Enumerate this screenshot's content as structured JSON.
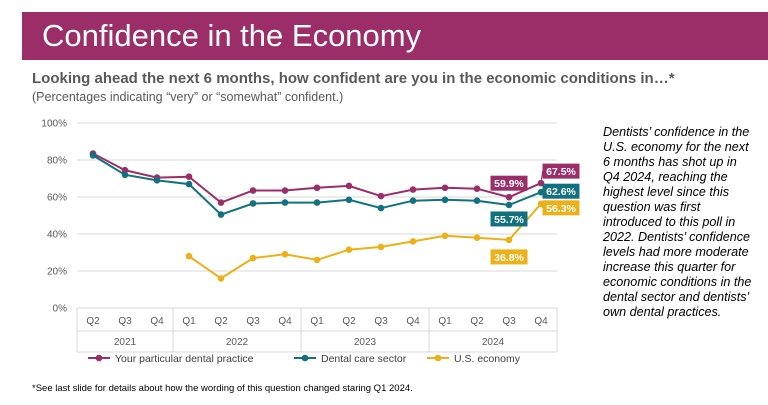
{
  "header": {
    "title": "Confidence in the Economy"
  },
  "question": "Looking ahead the next 6 months, how confident are you in the economic conditions in…*",
  "subtitle": "(Percentages indicating “very” or “somewhat” confident.)",
  "side_note": "Dentists’ confidence in the U.S. economy for the next 6 months has shot up in Q4 2024, reaching the highest level since this question was first introduced to this poll in 2022. Dentists’ confidence levels had more moderate increase this quarter for economic conditions in the dental sector and dentists’ own dental practices.",
  "footnote": "*See last slide for details about how the wording of this question changed staring Q1 2024.",
  "chart_data": {
    "type": "line",
    "title": "",
    "ylim": [
      0,
      100
    ],
    "y_ticks": [
      "0%",
      "20%",
      "40%",
      "60%",
      "80%",
      "100%"
    ],
    "categories": [
      "Q2",
      "Q3",
      "Q4",
      "Q1",
      "Q2",
      "Q3",
      "Q4",
      "Q1",
      "Q2",
      "Q3",
      "Q4",
      "Q1",
      "Q2",
      "Q3",
      "Q4"
    ],
    "years": [
      {
        "label": "2021",
        "start": 0,
        "end": 2
      },
      {
        "label": "2022",
        "start": 3,
        "end": 6
      },
      {
        "label": "2023",
        "start": 7,
        "end": 10
      },
      {
        "label": "2024",
        "start": 11,
        "end": 14
      }
    ],
    "series": [
      {
        "name": "Your particular dental practice",
        "color": "#9b2e68",
        "values": [
          83.5,
          74.5,
          70.5,
          71,
          57,
          63.5,
          63.5,
          65,
          66,
          60.5,
          64,
          65,
          64.5,
          59.9,
          67.5
        ],
        "labels": [
          {
            "index": 13,
            "text": "59.9%"
          },
          {
            "index": 14,
            "text": "67.5%"
          }
        ]
      },
      {
        "name": "Dental care sector",
        "color": "#117180",
        "values": [
          82.5,
          72,
          69,
          67,
          50.5,
          56.5,
          57,
          57,
          58.5,
          54,
          58,
          58.5,
          58,
          55.7,
          62.6
        ],
        "labels": [
          {
            "index": 13,
            "text": "55.7%"
          },
          {
            "index": 14,
            "text": "62.6%"
          }
        ]
      },
      {
        "name": "U.S. economy",
        "color": "#ecb018",
        "values": [
          null,
          null,
          null,
          28,
          16,
          27,
          29,
          26,
          31.5,
          33,
          36,
          39,
          38,
          36.8,
          56.3
        ],
        "labels": [
          {
            "index": 13,
            "text": "36.8%"
          },
          {
            "index": 14,
            "text": "56.3%"
          }
        ]
      }
    ]
  }
}
